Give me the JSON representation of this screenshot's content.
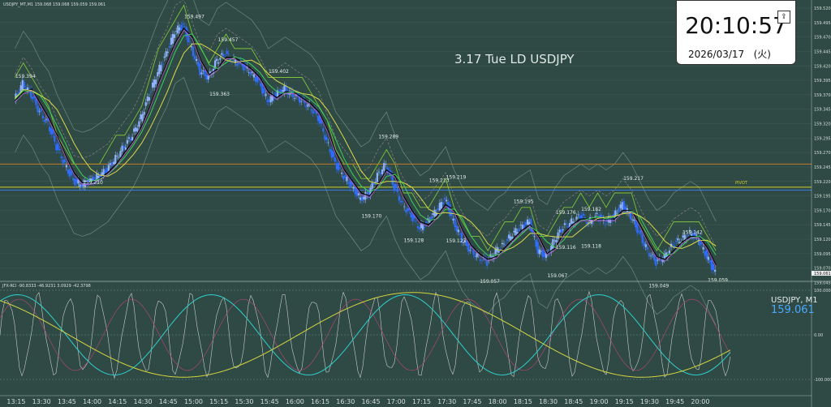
{
  "header": {
    "symbol_line": "USDJPY_MT,M1  159.068 159.068 159.059 159.061",
    "annotation": "3.17 Tue LD USDJPY"
  },
  "clock": {
    "time": "20:10:57",
    "date": "2026/03/17",
    "weekday": "(火)"
  },
  "price_panel": {
    "label": "USDJPY, M1",
    "price": "159.061",
    "current_tag": "159.061"
  },
  "indicator": {
    "header": "JFX-RCI -90.8333 -46.9231 3.0929 -42.3798"
  },
  "pivot_label": "PIVOT",
  "colors": {
    "background": "#2f4a44",
    "bull": "#8fb3ff",
    "bear": "#2f6cff",
    "pivot": "#cfcf2a",
    "resistance": "#c47a2a"
  },
  "chart_data": {
    "type": "candlestick",
    "title": "3.17 Tue LD USDJPY",
    "ylim": [
      159.04,
      159.52
    ],
    "y_ticks": [
      "159.520",
      "159.495",
      "159.470",
      "159.445",
      "159.420",
      "159.395",
      "159.370",
      "159.345",
      "159.320",
      "159.295",
      "159.270",
      "159.245",
      "159.220",
      "159.195",
      "159.170",
      "159.145",
      "159.120",
      "159.095",
      "159.070",
      "159.045"
    ],
    "x_ticks": [
      "13:15",
      "13:30",
      "13:45",
      "14:00",
      "14:15",
      "14:30",
      "14:45",
      "15:00",
      "15:15",
      "15:30",
      "15:45",
      "16:00",
      "16:15",
      "16:30",
      "16:45",
      "17:00",
      "17:15",
      "17:30",
      "17:45",
      "18:00",
      "18:15",
      "18:30",
      "18:45",
      "19:00",
      "19:15",
      "19:30",
      "19:45",
      "20:00"
    ],
    "close_path": [
      [
        "13:15",
        159.36
      ],
      [
        "13:20",
        159.39
      ],
      [
        "13:25",
        159.37
      ],
      [
        "13:30",
        159.34
      ],
      [
        "13:35",
        159.32
      ],
      [
        "13:40",
        159.28
      ],
      [
        "13:45",
        159.25
      ],
      [
        "13:50",
        159.22
      ],
      [
        "13:55",
        159.215
      ],
      [
        "14:00",
        159.22
      ],
      [
        "14:05",
        159.23
      ],
      [
        "14:10",
        159.24
      ],
      [
        "14:15",
        159.26
      ],
      [
        "14:20",
        159.28
      ],
      [
        "14:25",
        159.3
      ],
      [
        "14:30",
        159.33
      ],
      [
        "14:35",
        159.37
      ],
      [
        "14:40",
        159.41
      ],
      [
        "14:45",
        159.44
      ],
      [
        "14:50",
        159.48
      ],
      [
        "14:55",
        159.49
      ],
      [
        "15:00",
        159.45
      ],
      [
        "15:05",
        159.41
      ],
      [
        "15:10",
        159.4
      ],
      [
        "15:15",
        159.43
      ],
      [
        "15:20",
        159.44
      ],
      [
        "15:25",
        159.43
      ],
      [
        "15:30",
        159.42
      ],
      [
        "15:35",
        159.41
      ],
      [
        "15:40",
        159.39
      ],
      [
        "15:45",
        159.36
      ],
      [
        "15:50",
        159.37
      ],
      [
        "15:55",
        159.38
      ],
      [
        "16:00",
        159.37
      ],
      [
        "16:05",
        159.36
      ],
      [
        "16:10",
        159.35
      ],
      [
        "16:15",
        159.33
      ],
      [
        "16:20",
        159.29
      ],
      [
        "16:25",
        159.25
      ],
      [
        "16:30",
        159.23
      ],
      [
        "16:35",
        159.21
      ],
      [
        "16:40",
        159.19
      ],
      [
        "16:45",
        159.2
      ],
      [
        "16:50",
        159.23
      ],
      [
        "16:55",
        159.25
      ],
      [
        "17:00",
        159.21
      ],
      [
        "17:05",
        159.18
      ],
      [
        "17:10",
        159.16
      ],
      [
        "17:15",
        159.14
      ],
      [
        "17:20",
        159.15
      ],
      [
        "17:25",
        159.17
      ],
      [
        "17:30",
        159.19
      ],
      [
        "17:35",
        159.15
      ],
      [
        "17:40",
        159.12
      ],
      [
        "17:45",
        159.1
      ],
      [
        "17:50",
        159.09
      ],
      [
        "17:55",
        159.08
      ],
      [
        "18:00",
        159.1
      ],
      [
        "18:05",
        159.11
      ],
      [
        "18:10",
        159.13
      ],
      [
        "18:15",
        159.14
      ],
      [
        "18:20",
        159.15
      ],
      [
        "18:25",
        159.1
      ],
      [
        "18:30",
        159.09
      ],
      [
        "18:35",
        159.12
      ],
      [
        "18:40",
        159.14
      ],
      [
        "18:45",
        159.15
      ],
      [
        "18:50",
        159.16
      ],
      [
        "18:55",
        159.15
      ],
      [
        "19:00",
        159.16
      ],
      [
        "19:05",
        159.15
      ],
      [
        "19:10",
        159.16
      ],
      [
        "19:15",
        159.18
      ],
      [
        "19:20",
        159.16
      ],
      [
        "19:25",
        159.13
      ],
      [
        "19:30",
        159.1
      ],
      [
        "19:35",
        159.08
      ],
      [
        "19:40",
        159.09
      ],
      [
        "19:45",
        159.11
      ],
      [
        "19:50",
        159.12
      ],
      [
        "19:55",
        159.13
      ],
      [
        "20:00",
        159.12
      ],
      [
        "20:05",
        159.09
      ],
      [
        "20:10",
        159.061
      ]
    ],
    "price_labels": [
      {
        "text": "159.394",
        "time": "13:20",
        "price": 159.394
      },
      {
        "text": "159.210",
        "time": "14:00",
        "price": 159.21
      },
      {
        "text": "159.497",
        "time": "15:00",
        "price": 159.497
      },
      {
        "text": "159.457",
        "time": "15:20",
        "price": 159.457
      },
      {
        "text": "159.363",
        "time": "15:15",
        "price": 159.363
      },
      {
        "text": "159.402",
        "time": "15:50",
        "price": 159.402
      },
      {
        "text": "159.289",
        "time": "16:55",
        "price": 159.289
      },
      {
        "text": "159.170",
        "time": "16:45",
        "price": 159.17
      },
      {
        "text": "159.213",
        "time": "17:25",
        "price": 159.213
      },
      {
        "text": "159.219",
        "time": "17:35",
        "price": 159.219
      },
      {
        "text": "159.128",
        "time": "17:10",
        "price": 159.128
      },
      {
        "text": "159.127",
        "time": "17:35",
        "price": 159.127
      },
      {
        "text": "159.057",
        "time": "17:55",
        "price": 159.057
      },
      {
        "text": "159.195",
        "time": "18:15",
        "price": 159.195
      },
      {
        "text": "159.067",
        "time": "18:35",
        "price": 159.067
      },
      {
        "text": "159.176",
        "time": "18:40",
        "price": 159.176
      },
      {
        "text": "159.182",
        "time": "18:55",
        "price": 159.182
      },
      {
        "text": "159.116",
        "time": "18:40",
        "price": 159.116
      },
      {
        "text": "159.118",
        "time": "18:55",
        "price": 159.118
      },
      {
        "text": "159.217",
        "time": "19:20",
        "price": 159.217
      },
      {
        "text": "159.049",
        "time": "19:35",
        "price": 159.049
      },
      {
        "text": "159.142",
        "time": "19:55",
        "price": 159.142
      },
      {
        "text": "159.059",
        "time": "20:10",
        "price": 159.059
      }
    ],
    "horizontal_lines": [
      {
        "name": "pivot",
        "price": 159.21
      },
      {
        "name": "resistance",
        "price": 159.25
      },
      {
        "name": "blue-level",
        "price": 159.205
      }
    ],
    "indicator_ylim": [
      -100,
      100
    ],
    "indicator_ticks": [
      "100.0000",
      "0.00",
      "-100.0000"
    ]
  }
}
